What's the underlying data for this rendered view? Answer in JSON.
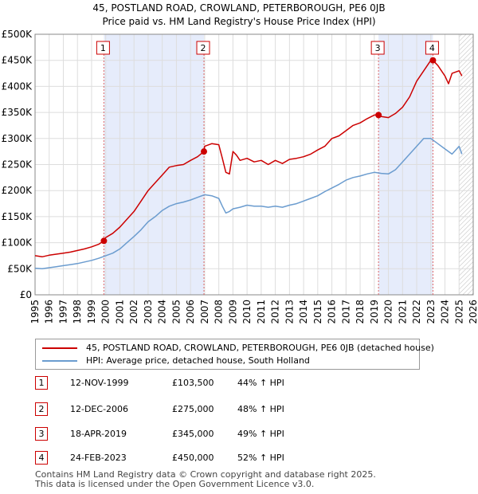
{
  "title_line1": "45, POSTLAND ROAD, CROWLAND, PETERBOROUGH, PE6 0JB",
  "title_line2": "Price paid vs. HM Land Registry's House Price Index (HPI)",
  "legend": {
    "red_label": "45, POSTLAND ROAD, CROWLAND, PETERBOROUGH, PE6 0JB (detached house)",
    "blue_label": "HPI: Average price, detached house, South Holland"
  },
  "colors": {
    "red": "#cc0000",
    "blue": "#6b9ccf",
    "shade": "#e6ecfb",
    "grid": "#dddddd"
  },
  "transactions": [
    {
      "id": "1",
      "date": "12-NOV-1999",
      "price": "£103,500",
      "hpi": "44% ↑ HPI"
    },
    {
      "id": "2",
      "date": "12-DEC-2006",
      "price": "£275,000",
      "hpi": "48% ↑ HPI"
    },
    {
      "id": "3",
      "date": "18-APR-2019",
      "price": "£345,000",
      "hpi": "49% ↑ HPI"
    },
    {
      "id": "4",
      "date": "24-FEB-2023",
      "price": "£450,000",
      "hpi": "52% ↑ HPI"
    }
  ],
  "footer_line1": "Contains HM Land Registry data © Crown copyright and database right 2025.",
  "footer_line2": "This data is licensed under the Open Government Licence v3.0.",
  "chart_data": {
    "type": "line",
    "title": "45, POSTLAND ROAD, CROWLAND, PETERBOROUGH, PE6 0JB",
    "subtitle": "Price paid vs. HM Land Registry's House Price Index (HPI)",
    "xlim": [
      1995,
      2026
    ],
    "ylim": [
      0,
      500000
    ],
    "xticks": [
      1995,
      1996,
      1997,
      1998,
      1999,
      2000,
      2001,
      2002,
      2003,
      2004,
      2005,
      2006,
      2007,
      2008,
      2009,
      2010,
      2011,
      2012,
      2013,
      2014,
      2015,
      2016,
      2017,
      2018,
      2019,
      2020,
      2021,
      2022,
      2023,
      2024,
      2025,
      2026
    ],
    "yticks": [
      {
        "v": 0,
        "label": "£0"
      },
      {
        "v": 50000,
        "label": "£50K"
      },
      {
        "v": 100000,
        "label": "£100K"
      },
      {
        "v": 150000,
        "label": "£150K"
      },
      {
        "v": 200000,
        "label": "£200K"
      },
      {
        "v": 250000,
        "label": "£250K"
      },
      {
        "v": 300000,
        "label": "£300K"
      },
      {
        "v": 350000,
        "label": "£350K"
      },
      {
        "v": 400000,
        "label": "£400K"
      },
      {
        "v": 450000,
        "label": "£450K"
      },
      {
        "v": 500000,
        "label": "£500K"
      }
    ],
    "shaded_ranges": [
      [
        1999.87,
        2006.95
      ],
      [
        2019.3,
        2023.15
      ]
    ],
    "hatched_from": 2025.0,
    "sales": [
      {
        "label": "1",
        "x": 1999.87,
        "y": 103500
      },
      {
        "label": "2",
        "x": 2006.95,
        "y": 275000
      },
      {
        "label": "3",
        "x": 2019.3,
        "y": 345000
      },
      {
        "label": "4",
        "x": 2023.15,
        "y": 450000
      }
    ],
    "series": [
      {
        "name": "45, POSTLAND ROAD, CROWLAND, PETERBOROUGH, PE6 0JB (detached house)",
        "color": "#cc0000",
        "x": [
          1995,
          1995.5,
          1996,
          1996.5,
          1997,
          1997.5,
          1998,
          1998.5,
          1999,
          1999.5,
          1999.87,
          2000,
          2000.5,
          2001,
          2001.5,
          2002,
          2002.5,
          2003,
          2003.5,
          2004,
          2004.5,
          2005,
          2005.5,
          2006,
          2006.5,
          2006.95,
          2007,
          2007.5,
          2008,
          2008.25,
          2008.5,
          2008.75,
          2009,
          2009.25,
          2009.5,
          2010,
          2010.5,
          2011,
          2011.5,
          2012,
          2012.5,
          2013,
          2013.5,
          2014,
          2014.5,
          2015,
          2015.5,
          2016,
          2016.5,
          2017,
          2017.5,
          2018,
          2018.5,
          2019,
          2019.3,
          2019.5,
          2020,
          2020.5,
          2021,
          2021.5,
          2022,
          2022.5,
          2023,
          2023.15,
          2023.5,
          2024,
          2024.25,
          2024.5,
          2025,
          2025.2
        ],
        "y": [
          75000,
          73000,
          76000,
          78000,
          80000,
          82000,
          85000,
          88000,
          92000,
          97000,
          103500,
          110000,
          118000,
          130000,
          145000,
          160000,
          180000,
          200000,
          215000,
          230000,
          245000,
          248000,
          250000,
          258000,
          265000,
          275000,
          285000,
          290000,
          288000,
          262000,
          235000,
          232000,
          275000,
          268000,
          258000,
          262000,
          255000,
          258000,
          250000,
          258000,
          252000,
          260000,
          262000,
          265000,
          270000,
          278000,
          285000,
          300000,
          305000,
          315000,
          325000,
          330000,
          338000,
          345000,
          345000,
          342000,
          340000,
          348000,
          360000,
          380000,
          410000,
          430000,
          450000,
          450000,
          440000,
          420000,
          405000,
          425000,
          430000,
          420000
        ]
      },
      {
        "name": "HPI: Average price, detached house, South Holland",
        "color": "#6b9ccf",
        "x": [
          1995,
          1995.5,
          1996,
          1996.5,
          1997,
          1997.5,
          1998,
          1998.5,
          1999,
          1999.5,
          2000,
          2000.5,
          2001,
          2001.5,
          2002,
          2002.5,
          2003,
          2003.5,
          2004,
          2004.5,
          2005,
          2005.5,
          2006,
          2006.5,
          2007,
          2007.5,
          2008,
          2008.25,
          2008.5,
          2008.75,
          2009,
          2009.5,
          2010,
          2010.5,
          2011,
          2011.5,
          2012,
          2012.5,
          2013,
          2013.5,
          2014,
          2014.5,
          2015,
          2015.5,
          2016,
          2016.5,
          2017,
          2017.5,
          2018,
          2018.5,
          2019,
          2019.5,
          2020,
          2020.5,
          2021,
          2021.5,
          2022,
          2022.5,
          2023,
          2023.5,
          2024,
          2024.5,
          2025,
          2025.2
        ],
        "y": [
          51000,
          50000,
          52000,
          54000,
          56000,
          58000,
          60000,
          63000,
          66000,
          70000,
          75000,
          80000,
          88000,
          100000,
          112000,
          125000,
          140000,
          150000,
          162000,
          170000,
          175000,
          178000,
          182000,
          187000,
          192000,
          190000,
          185000,
          170000,
          157000,
          160000,
          165000,
          168000,
          172000,
          170000,
          170000,
          168000,
          170000,
          168000,
          172000,
          175000,
          180000,
          185000,
          190000,
          198000,
          205000,
          212000,
          220000,
          225000,
          228000,
          232000,
          235000,
          233000,
          232000,
          240000,
          255000,
          270000,
          285000,
          300000,
          300000,
          290000,
          280000,
          270000,
          285000,
          270000
        ]
      }
    ]
  }
}
